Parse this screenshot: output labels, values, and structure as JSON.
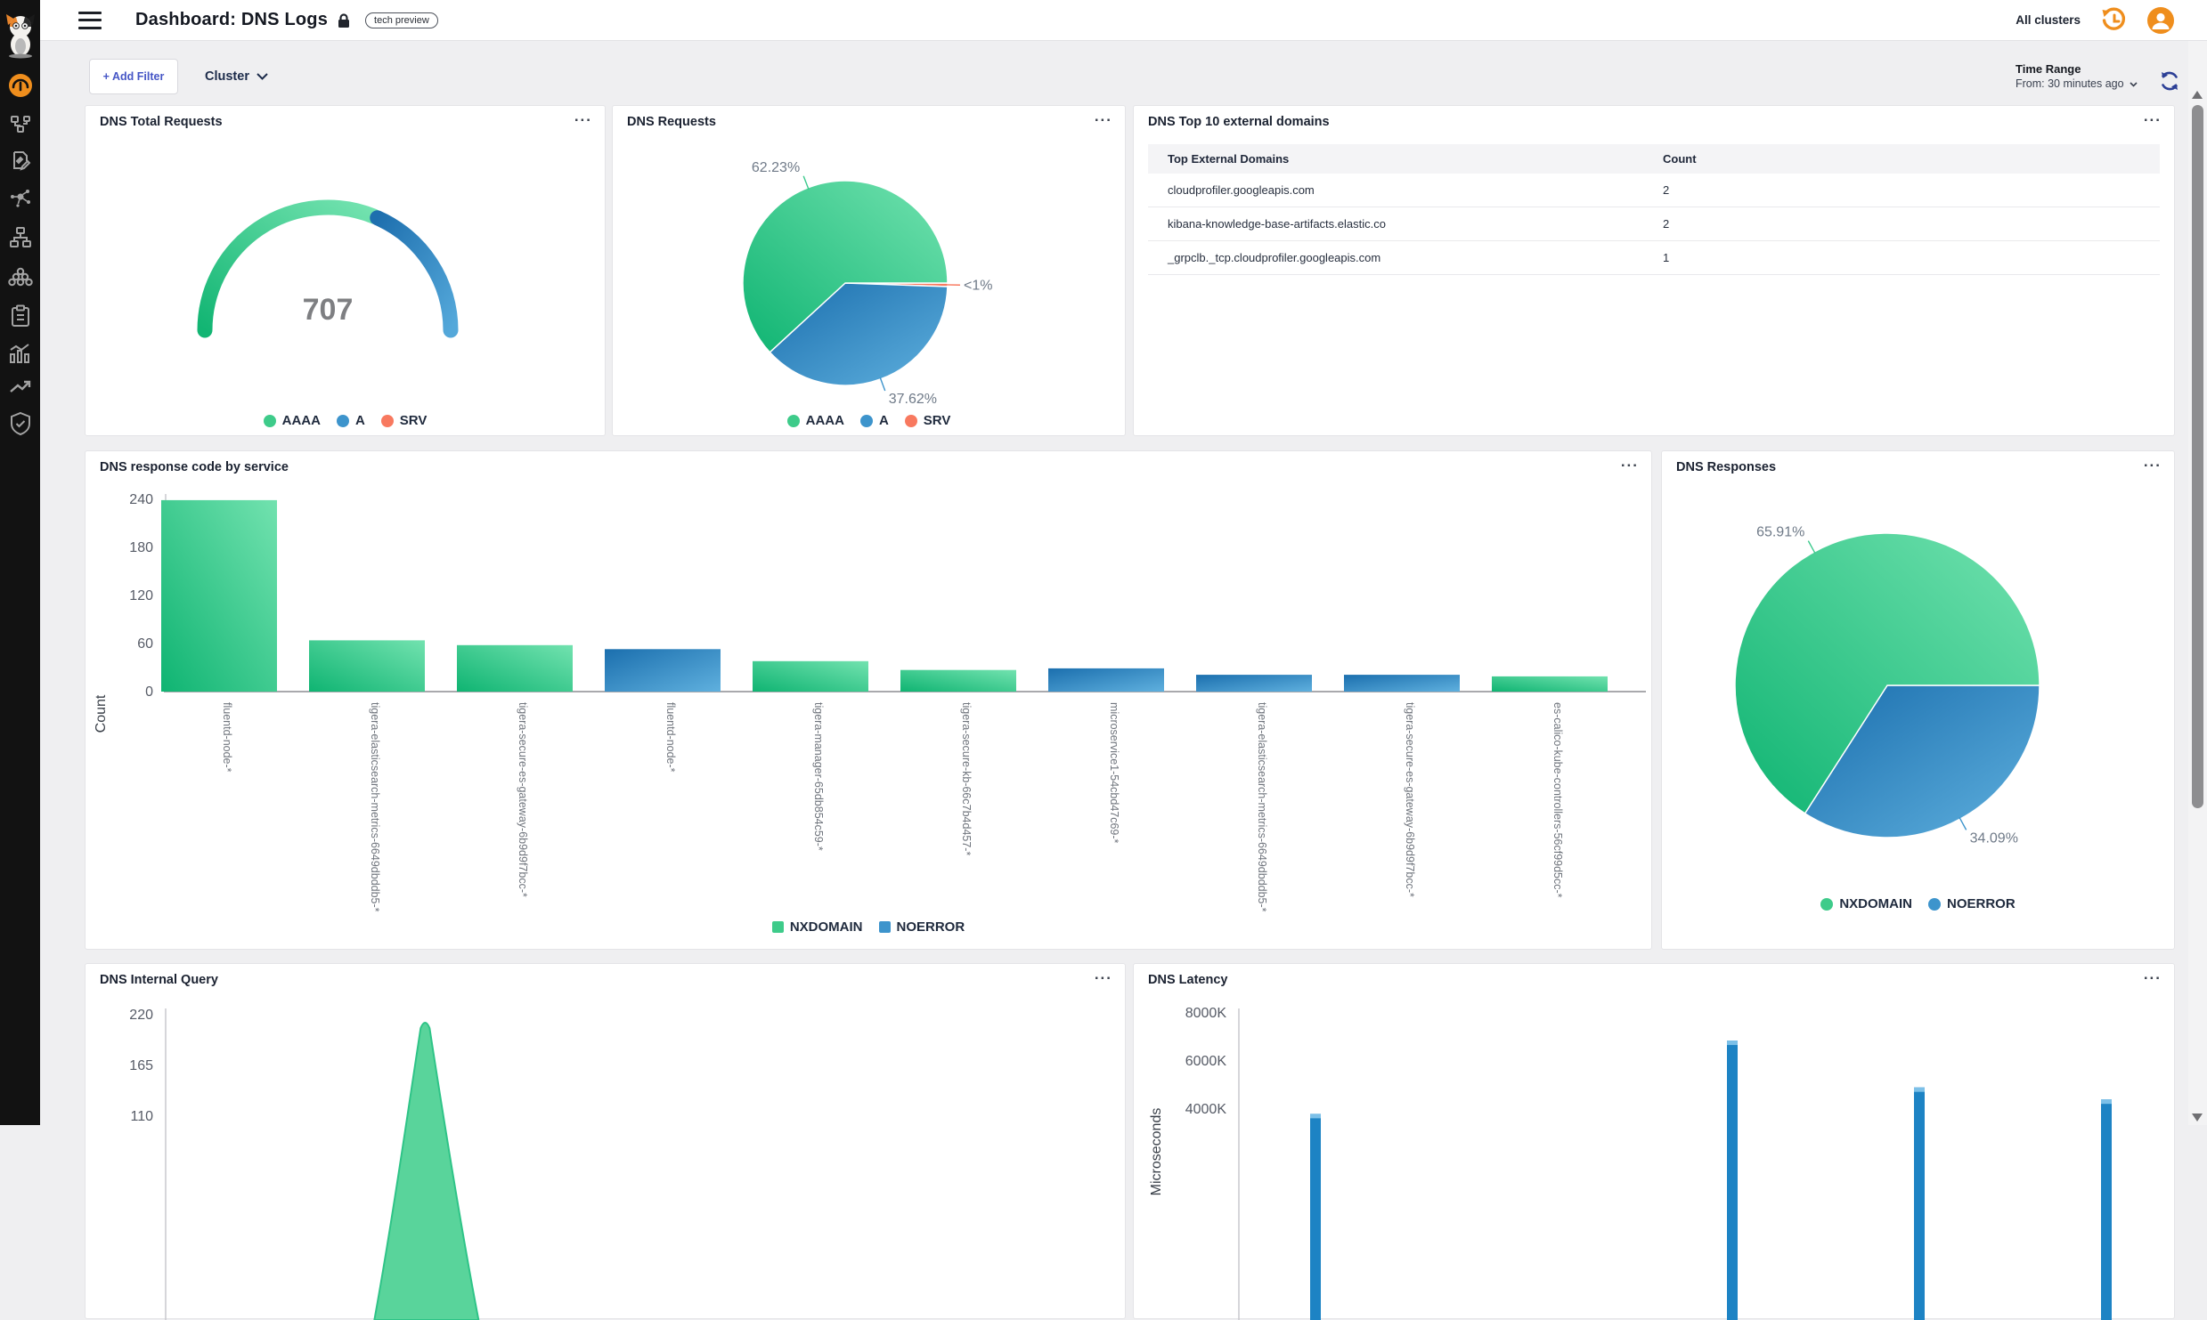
{
  "header": {
    "title": "Dashboard: DNS Logs",
    "badge": "tech preview",
    "all_clusters": "All clusters"
  },
  "filter_bar": {
    "add_filter": "+ Add Filter",
    "cluster": "Cluster",
    "time_range_label": "Time Range",
    "time_range_value": "From: 30 minutes ago"
  },
  "ui": {
    "panel_menu": "..."
  },
  "sidebar": {
    "icons": [
      "calico-cat-logo",
      "dashboard-gauge",
      "network-topology",
      "policy-edit",
      "service-scatter",
      "sitemap",
      "workload-cluster",
      "clipboard",
      "metrics-chart",
      "trend-arrow",
      "shield-check"
    ]
  },
  "colors": {
    "green": "#14b877",
    "green_light": "#6ce0ab",
    "blue": "#1e74b2",
    "blue_light": "#56aadb",
    "salmon": "#f8795f",
    "legend_green": "#3ecb8a",
    "legend_blue": "#3d94cc",
    "orange": "#ef8e1d",
    "axis_text": "#565b66",
    "pct_text": "#6f7a88"
  },
  "series_colors": {
    "AAAA": "green",
    "A": "blue",
    "SRV": "salmon",
    "NXDOMAIN": "green",
    "NOERROR": "blue"
  },
  "chart_data": [
    {
      "type": "gauge",
      "title": "DNS Total Requests",
      "value": "707",
      "series": [
        {
          "name": "AAAA",
          "percent": 62.23
        },
        {
          "name": "A",
          "percent": 37.62
        },
        {
          "name": "SRV",
          "percent": 0.15
        }
      ],
      "legend": [
        "AAAA",
        "A",
        "SRV"
      ]
    },
    {
      "type": "pie",
      "title": "DNS Requests",
      "slices": [
        {
          "name": "AAAA",
          "percent": 62.23,
          "label": "62.23%"
        },
        {
          "name": "A",
          "percent": 37.62,
          "label": "37.62%"
        },
        {
          "name": "SRV",
          "percent": 0.15,
          "label": "<1%"
        }
      ],
      "legend": [
        "AAAA",
        "A",
        "SRV"
      ]
    },
    {
      "type": "table",
      "title": "DNS Top 10 external domains",
      "columns": [
        "Top External Domains",
        "Count"
      ],
      "rows": [
        [
          "cloudprofiler.googleapis.com",
          "2"
        ],
        [
          "kibana-knowledge-base-artifacts.elastic.co",
          "2"
        ],
        [
          "_grpclb._tcp.cloudprofiler.googleapis.com",
          "1"
        ]
      ]
    },
    {
      "type": "bar",
      "title": "DNS response code by service",
      "ylabel": "Count",
      "ylim": [
        0,
        240
      ],
      "yticks": [
        0,
        60,
        120,
        180,
        240
      ],
      "categories": [
        "fluentd-node-*",
        "tigera-elasticsearch-metrics-6649dbddb5-*",
        "tigera-secure-es-gateway-6b9d9f7bcc-*",
        "fluentd-node-*",
        "tigera-manager-65db854c59-*",
        "tigera-secure-kb-66c7b4d457-*",
        "microservice1-54cbd47c69-*",
        "tigera-elasticsearch-metrics-6649dbddb5-*",
        "tigera-secure-es-gateway-6b9d9f7bcc-*",
        "es-calico-kube-controllers-56cf99d5cc-*"
      ],
      "values": [
        239,
        64,
        58,
        53,
        38,
        27,
        29,
        21,
        21,
        19
      ],
      "bar_series": [
        "NXDOMAIN",
        "NXDOMAIN",
        "NXDOMAIN",
        "NOERROR",
        "NXDOMAIN",
        "NXDOMAIN",
        "NOERROR",
        "NOERROR",
        "NOERROR",
        "NXDOMAIN"
      ],
      "legend": [
        "NXDOMAIN",
        "NOERROR"
      ]
    },
    {
      "type": "pie",
      "title": "DNS Responses",
      "slices": [
        {
          "name": "NXDOMAIN",
          "percent": 65.91,
          "label": "65.91%"
        },
        {
          "name": "NOERROR",
          "percent": 34.09,
          "label": "34.09%"
        }
      ],
      "legend": [
        "NXDOMAIN",
        "NOERROR"
      ]
    },
    {
      "type": "area",
      "title": "DNS Internal Query",
      "yticks": [
        220,
        165,
        110
      ],
      "peak_value": 220,
      "peak_x_fraction": 0.27
    },
    {
      "type": "bar",
      "title": "DNS Latency",
      "ylabel": "Microseconds",
      "yticks": [
        "8000K",
        "6000K",
        "4000K"
      ],
      "bars": [
        {
          "x": 204,
          "value_k": 3800
        },
        {
          "x": 672,
          "value_k": 6850
        },
        {
          "x": 882,
          "value_k": 4900
        },
        {
          "x": 1092,
          "value_k": 4400
        }
      ]
    }
  ]
}
